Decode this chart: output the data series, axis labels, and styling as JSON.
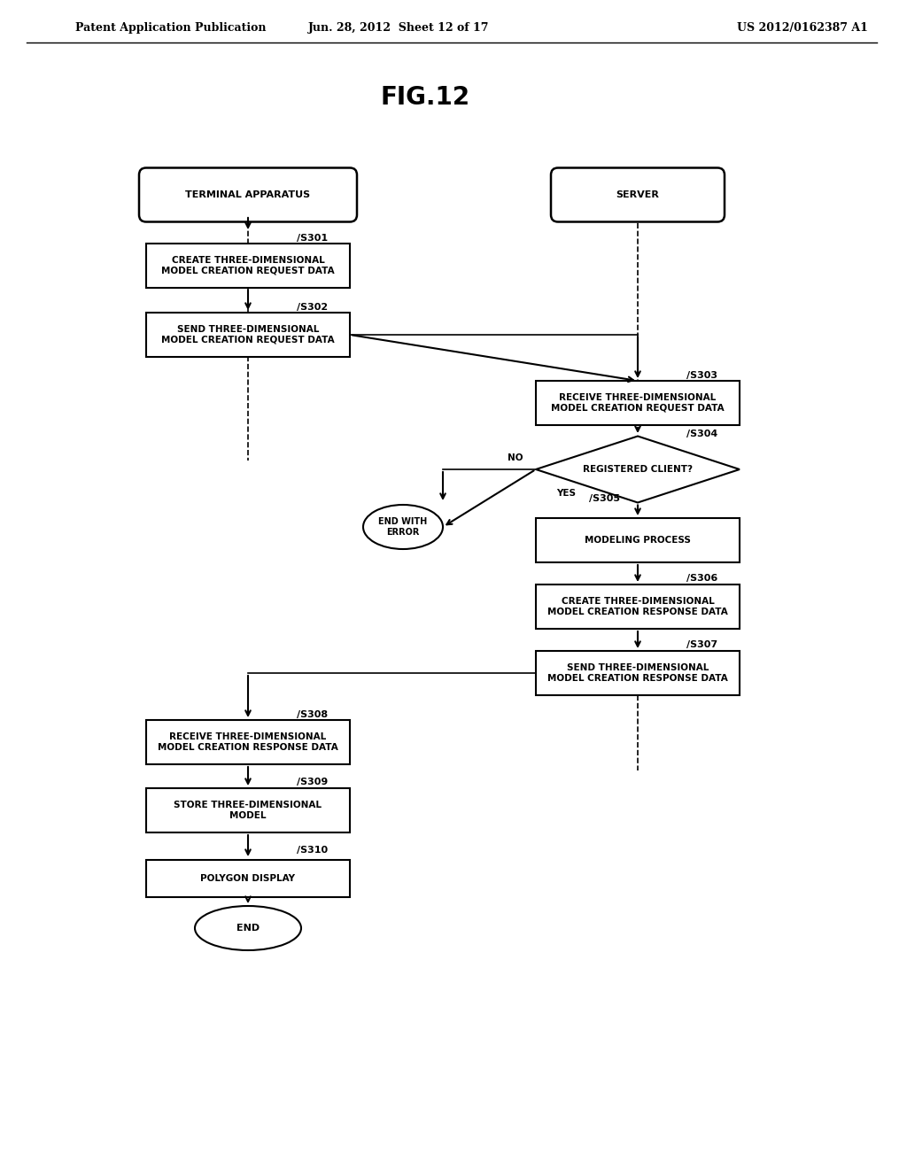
{
  "title": "FIG.12",
  "header_left": "Patent Application Publication",
  "header_center": "Jun. 28, 2012  Sheet 12 of 17",
  "header_right": "US 2012/0162387 A1",
  "bg_color": "#ffffff",
  "text_color": "#000000",
  "terminal_label": "TERMINAL APPARATUS",
  "server_label": "SERVER",
  "steps": [
    {
      "id": "S301",
      "label": "CREATE THREE-DIMENSIONAL\nMODEL CREATION REQUEST DATA",
      "type": "rect",
      "col": "left"
    },
    {
      "id": "S302",
      "label": "SEND THREE-DIMENSIONAL\nMODEL CREATION REQUEST DATA",
      "type": "rect",
      "col": "left"
    },
    {
      "id": "S303",
      "label": "RECEIVE THREE-DIMENSIONAL\nMODEL CREATION REQUEST DATA",
      "type": "rect",
      "col": "right"
    },
    {
      "id": "S304",
      "label": "REGISTERED CLIENT?",
      "type": "diamond",
      "col": "right"
    },
    {
      "id": "S305",
      "label": "MODELING PROCESS",
      "type": "rect",
      "col": "right"
    },
    {
      "id": "S306",
      "label": "CREATE THREE-DIMENSIONAL\nMODEL CREATION RESPONSE DATA",
      "type": "rect",
      "col": "right"
    },
    {
      "id": "S307",
      "label": "SEND THREE-DIMENSIONAL\nMODEL CREATION RESPONSE DATA",
      "type": "rect",
      "col": "right"
    },
    {
      "id": "S308",
      "label": "RECEIVE THREE-DIMENSIONAL\nMODEL CREATION RESPONSE DATA",
      "type": "rect",
      "col": "left"
    },
    {
      "id": "S309",
      "label": "STORE THREE-DIMENSIONAL\nMODEL",
      "type": "rect",
      "col": "left"
    },
    {
      "id": "S310",
      "label": "POLYGON DISPLAY",
      "type": "rect",
      "col": "left"
    },
    {
      "id": "END",
      "label": "END",
      "type": "oval",
      "col": "left"
    }
  ],
  "error_node": {
    "label": "END WITH\nERROR",
    "type": "oval"
  }
}
